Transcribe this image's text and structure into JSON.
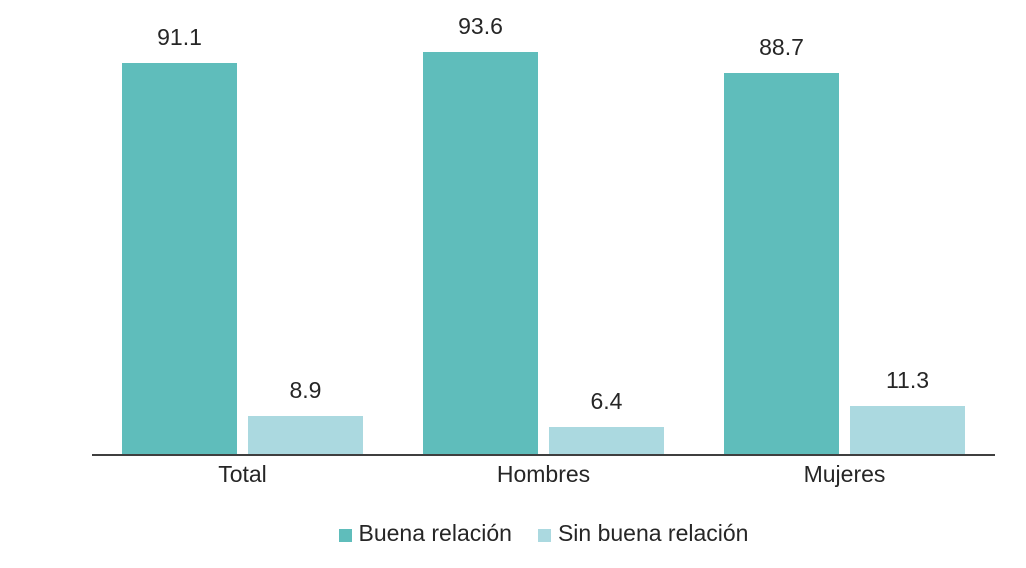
{
  "chart_data": {
    "type": "bar",
    "title": "",
    "xlabel": "",
    "ylabel": "",
    "categories": [
      "Total",
      "Hombres",
      "Mujeres"
    ],
    "series": [
      {
        "name": "Buena relación",
        "color": "#5FBDBB",
        "values": [
          91.1,
          93.6,
          88.7
        ]
      },
      {
        "name": "Sin buena relación",
        "color": "#ABD9E0",
        "values": [
          8.9,
          6.4,
          11.3
        ]
      }
    ],
    "data_labels": [
      [
        "91.1",
        "93.6",
        "88.7"
      ],
      [
        "8.9",
        "6.4",
        "11.3"
      ]
    ],
    "ylim": [
      0,
      100
    ],
    "grid": false,
    "legend_position": "bottom"
  },
  "style": {
    "background": "#FFFFFF",
    "axis_line_color": "#3F3F3F",
    "text_color": "#262626",
    "series_colors": [
      "#5FBDBB",
      "#ABD9E0"
    ]
  }
}
